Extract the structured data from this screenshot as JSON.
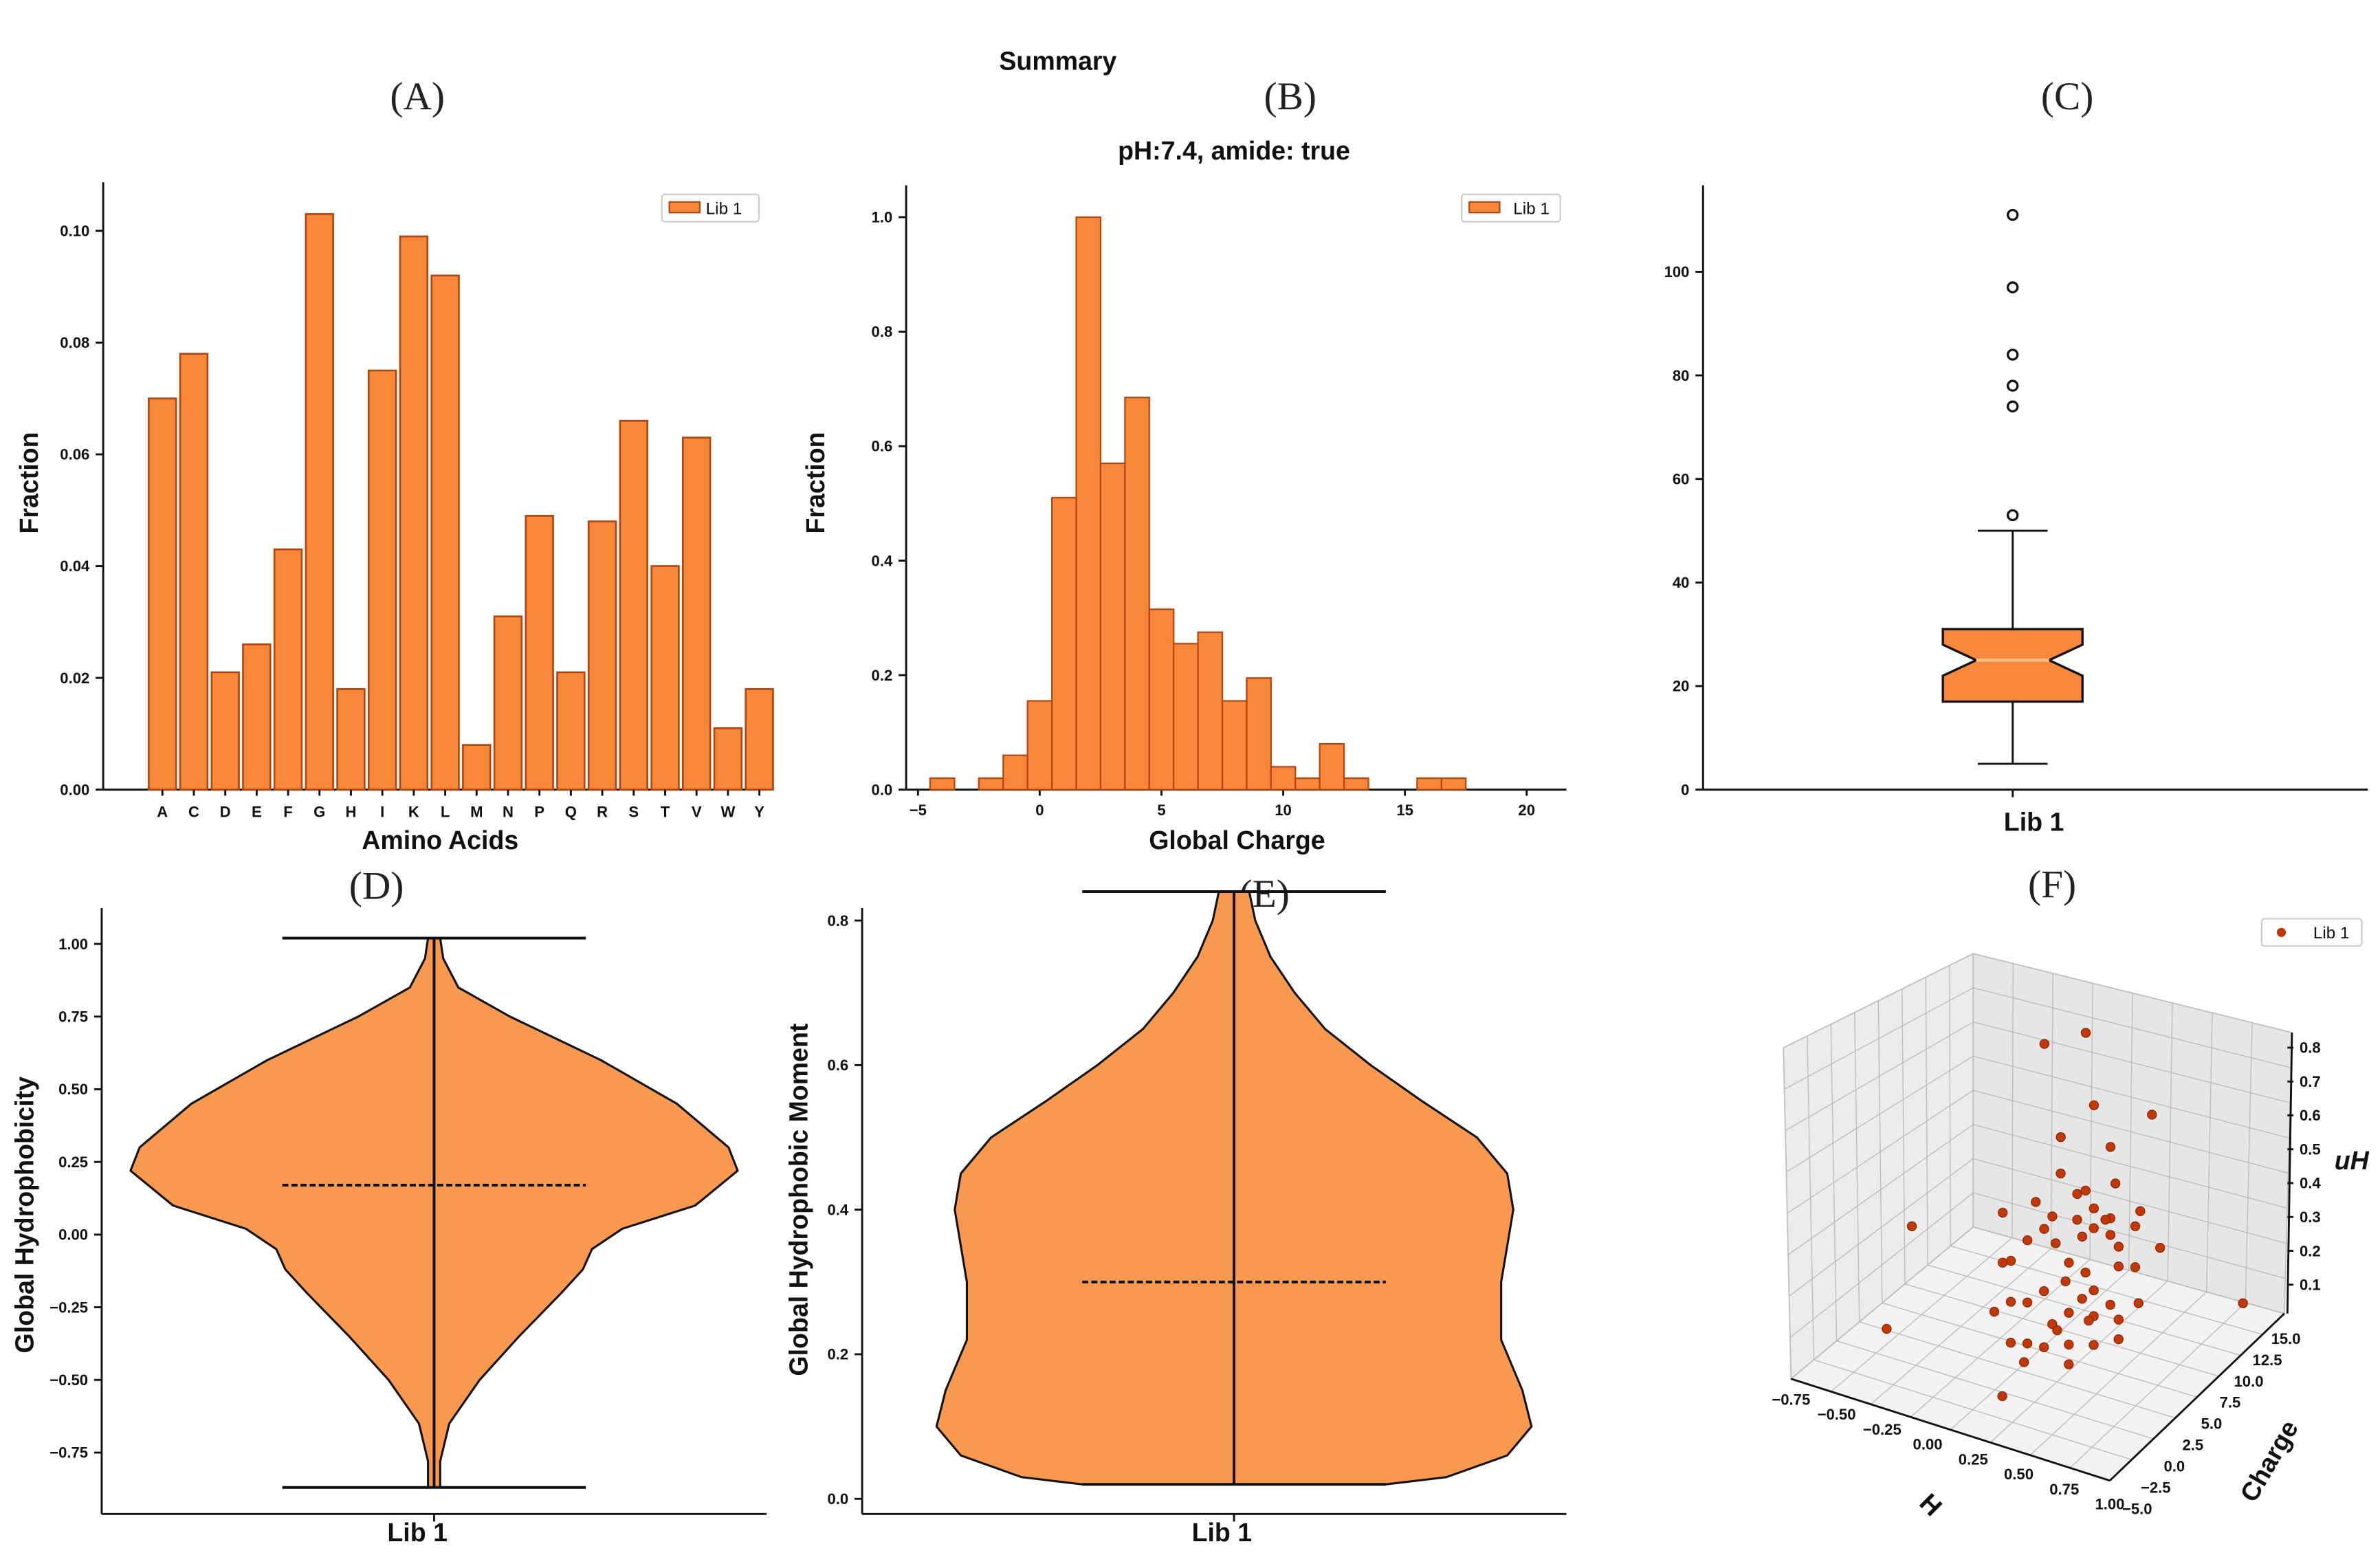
{
  "title": "Summary",
  "colors": {
    "bar_fill": "#f7883a",
    "bar_edge": "#b5440f",
    "violin_fill": "#f9994f",
    "scatter": "#c0390a",
    "scatter_edge": "#8a1f00"
  },
  "chart_data": [
    {
      "panel": "(A)",
      "type": "bar",
      "categories": [
        "A",
        "C",
        "D",
        "E",
        "F",
        "G",
        "H",
        "I",
        "K",
        "L",
        "M",
        "N",
        "P",
        "Q",
        "R",
        "S",
        "T",
        "V",
        "W",
        "Y"
      ],
      "series": [
        {
          "name": "Lib 1",
          "values": [
            0.07,
            0.078,
            0.021,
            0.026,
            0.043,
            0.103,
            0.018,
            0.075,
            0.099,
            0.092,
            0.008,
            0.031,
            0.049,
            0.021,
            0.048,
            0.066,
            0.04,
            0.063,
            0.011,
            0.018
          ]
        }
      ],
      "xlabel": "Amino Acids",
      "ylabel": "Fraction",
      "ylim": [
        0,
        0.108
      ],
      "yticks": [
        "0.00",
        "0.02",
        "0.04",
        "0.06",
        "0.08",
        "0.10"
      ],
      "legend": "top-right",
      "grid": false
    },
    {
      "panel": "(B)",
      "type": "bar",
      "subtype": "histogram",
      "title": "pH:7.4, amide: true",
      "bin_width": 1,
      "bin_centers": [
        -4,
        -3,
        -2,
        -1,
        0,
        1,
        2,
        3,
        4,
        5,
        6,
        7,
        8,
        9,
        10,
        11,
        12,
        13,
        14,
        15,
        16,
        17
      ],
      "series": [
        {
          "name": "Lib 1",
          "values": [
            0.02,
            0,
            0.02,
            0.06,
            0.155,
            0.51,
            1.0,
            0.57,
            0.685,
            0.315,
            0.255,
            0.275,
            0.155,
            0.195,
            0.04,
            0.02,
            0.08,
            0.02,
            0,
            0,
            0.02,
            0.02
          ]
        }
      ],
      "xlabel": "Global Charge",
      "ylabel": "Fraction",
      "xlim": [
        -5.5,
        21.5
      ],
      "ylim": [
        0,
        1.05
      ],
      "xticks": [
        "-5",
        "0",
        "5",
        "10",
        "15",
        "20"
      ],
      "yticks": [
        "0.0",
        "0.2",
        "0.4",
        "0.6",
        "0.8",
        "1.0"
      ],
      "legend": "top-right",
      "grid": false
    },
    {
      "panel": "(C)",
      "type": "box",
      "notched": true,
      "categories": [
        "Lib 1"
      ],
      "stats": {
        "whisker_low": 5,
        "q1": 17,
        "median": 25,
        "q3": 31,
        "whisker_high": 50,
        "notch_low": 22,
        "notch_high": 28,
        "outliers": [
          53,
          74,
          78,
          84,
          97,
          111
        ]
      },
      "ylim": [
        0,
        117
      ],
      "yticks": [
        "0",
        "20",
        "40",
        "60",
        "80",
        "100"
      ],
      "grid": false
    },
    {
      "panel": "(D)",
      "type": "violin",
      "categories": [
        "Lib 1"
      ],
      "ylabel": "Global Hydrophobicity",
      "stats": {
        "min": -0.87,
        "max": 1.02,
        "median": 0.17
      },
      "density_profile": [
        [
          1.02,
          0.02
        ],
        [
          0.95,
          0.03
        ],
        [
          0.85,
          0.08
        ],
        [
          0.75,
          0.25
        ],
        [
          0.6,
          0.55
        ],
        [
          0.45,
          0.8
        ],
        [
          0.3,
          0.97
        ],
        [
          0.22,
          1.0
        ],
        [
          0.1,
          0.86
        ],
        [
          0.02,
          0.62
        ],
        [
          -0.05,
          0.52
        ],
        [
          -0.12,
          0.49
        ],
        [
          -0.2,
          0.42
        ],
        [
          -0.35,
          0.28
        ],
        [
          -0.5,
          0.15
        ],
        [
          -0.65,
          0.05
        ],
        [
          -0.78,
          0.02
        ],
        [
          -0.87,
          0.02
        ]
      ],
      "ylim": [
        -0.92,
        1.08
      ],
      "yticks": [
        "-0.75",
        "-0.50",
        "-0.25",
        "0.00",
        "0.25",
        "0.50",
        "0.75",
        "1.00"
      ]
    },
    {
      "panel": "(E)",
      "type": "violin",
      "categories": [
        "Lib 1"
      ],
      "ylabel": "Global Hydrophobic Moment",
      "stats": {
        "min": 0.02,
        "max": 0.84,
        "median": 0.3
      },
      "density_profile": [
        [
          0.84,
          0.05
        ],
        [
          0.8,
          0.07
        ],
        [
          0.75,
          0.12
        ],
        [
          0.7,
          0.2
        ],
        [
          0.65,
          0.3
        ],
        [
          0.6,
          0.45
        ],
        [
          0.55,
          0.62
        ],
        [
          0.5,
          0.8
        ],
        [
          0.45,
          0.9
        ],
        [
          0.4,
          0.92
        ],
        [
          0.3,
          0.88
        ],
        [
          0.22,
          0.88
        ],
        [
          0.15,
          0.95
        ],
        [
          0.1,
          0.98
        ],
        [
          0.06,
          0.9
        ],
        [
          0.03,
          0.7
        ],
        [
          0.02,
          0.5
        ]
      ],
      "ylim": [
        -0.02,
        0.86
      ],
      "yticks": [
        "0.0",
        "0.2",
        "0.4",
        "0.6",
        "0.8"
      ]
    },
    {
      "panel": "(F)",
      "type": "scatter3d",
      "xlabel": "H",
      "ylabel": "Charge",
      "zlabel": "uH",
      "xticks": [
        "-0.75",
        "-0.50",
        "-0.25",
        "0.00",
        "0.25",
        "0.50",
        "0.75",
        "1.00"
      ],
      "yticks": [
        "-5.0",
        "-2.5",
        "0.0",
        "2.5",
        "5.0",
        "7.5",
        "10.0",
        "12.5",
        "15.0"
      ],
      "zticks": [
        "0.1",
        "0.2",
        "0.3",
        "0.4",
        "0.5",
        "0.6",
        "0.7",
        "0.8"
      ],
      "series": [
        {
          "name": "Lib 1",
          "points": [
            [
              -0.8,
              8,
              0.1
            ],
            [
              -0.5,
              -1,
              0.05
            ],
            [
              0.95,
              13,
              0.02
            ],
            [
              0.3,
              -3,
              0.02
            ],
            [
              -0.2,
              12,
              0.7
            ],
            [
              0.05,
              12,
              0.78
            ],
            [
              0.1,
              8,
              0.55
            ],
            [
              0.2,
              10,
              0.62
            ],
            [
              0.3,
              10,
              0.5
            ],
            [
              0.45,
              12,
              0.58
            ],
            [
              0.2,
              6,
              0.5
            ],
            [
              0.3,
              6,
              0.45
            ],
            [
              0.25,
              4,
              0.42
            ],
            [
              0.35,
              5,
              0.4
            ],
            [
              0.15,
              3,
              0.35
            ],
            [
              0.1,
              6,
              0.3
            ],
            [
              0.3,
              8,
              0.35
            ],
            [
              0.35,
              9,
              0.3
            ],
            [
              0.4,
              8,
              0.28
            ],
            [
              0.45,
              8,
              0.25
            ],
            [
              0.5,
              9,
              0.3
            ],
            [
              0.5,
              7,
              0.22
            ],
            [
              0.55,
              8,
              0.2
            ],
            [
              0.6,
              10,
              0.22
            ],
            [
              0.35,
              6,
              0.2
            ],
            [
              0.3,
              5,
              0.25
            ],
            [
              0.4,
              6,
              0.15
            ],
            [
              0.25,
              3,
              0.2
            ],
            [
              0.2,
              2,
              0.18
            ],
            [
              0.15,
              1,
              0.2
            ],
            [
              0.3,
              3,
              0.1
            ],
            [
              0.35,
              4,
              0.12
            ],
            [
              0.45,
              5,
              0.1
            ],
            [
              0.5,
              6,
              0.12
            ],
            [
              0.55,
              6,
              0.08
            ],
            [
              0.25,
              1,
              0.08
            ],
            [
              0.3,
              2,
              0.05
            ],
            [
              0.4,
              3,
              0.05
            ],
            [
              0.2,
              0,
              0.1
            ],
            [
              0.45,
              2,
              0.02
            ],
            [
              0.5,
              4,
              0.04
            ],
            [
              0.6,
              5,
              0.05
            ],
            [
              0.1,
              2,
              0.3
            ],
            [
              0.0,
              3,
              0.25
            ],
            [
              -0.05,
              4,
              0.38
            ],
            [
              0.05,
              1,
              0.15
            ],
            [
              0.35,
              7,
              0.32
            ],
            [
              0.42,
              7,
              0.36
            ],
            [
              0.48,
              10,
              0.32
            ],
            [
              0.38,
              9,
              0.42
            ],
            [
              0.28,
              7,
              0.28
            ],
            [
              0.22,
              5,
              0.3
            ],
            [
              0.33,
              4,
              0.22
            ],
            [
              0.43,
              4,
              0.18
            ],
            [
              0.38,
              2,
              0.12
            ],
            [
              0.28,
              0,
              0.05
            ],
            [
              0.52,
              3,
              0.15
            ],
            [
              0.62,
              7,
              0.12
            ],
            [
              0.15,
              4,
              0.45
            ],
            [
              0.25,
              8,
              0.4
            ]
          ]
        }
      ],
      "legend": "top-right",
      "grid": true
    }
  ]
}
